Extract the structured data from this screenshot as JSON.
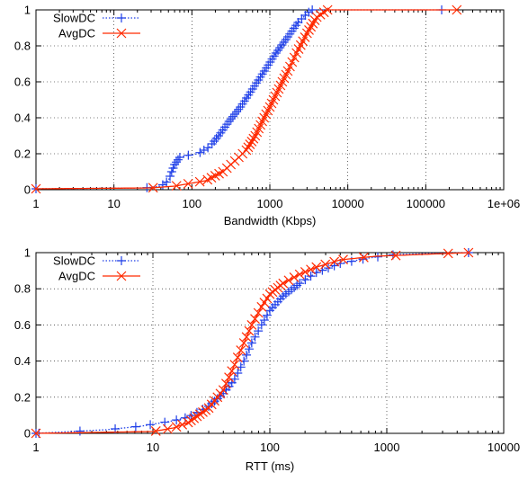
{
  "chart_data": [
    {
      "type": "line",
      "xlabel": "Bandwidth (Kbps)",
      "ylabel": "",
      "xscale": "log",
      "xlim": [
        1,
        1000000
      ],
      "ylim": [
        0,
        1
      ],
      "grid": true,
      "legend_position": "top-left",
      "x_ticks": [
        {
          "v": 1,
          "label": "1"
        },
        {
          "v": 10,
          "label": "10"
        },
        {
          "v": 100,
          "label": "100"
        },
        {
          "v": 1000,
          "label": "1000"
        },
        {
          "v": 10000,
          "label": "10000"
        },
        {
          "v": 100000,
          "label": "100000"
        },
        {
          "v": 1000000,
          "label": "1e+06"
        }
      ],
      "y_ticks": [
        {
          "v": 0,
          "label": "0"
        },
        {
          "v": 0.2,
          "label": "0.2"
        },
        {
          "v": 0.4,
          "label": "0.4"
        },
        {
          "v": 0.6,
          "label": "0.6"
        },
        {
          "v": 0.8,
          "label": "0.8"
        },
        {
          "v": 1,
          "label": "1"
        }
      ],
      "series": [
        {
          "name": "SlowDC",
          "color": "#2040e8",
          "marker": "plus",
          "line_style": "dotted",
          "points": [
            [
              1,
              0.005
            ],
            [
              25,
              0.01
            ],
            [
              40,
              0.02
            ],
            [
              50,
              0.05
            ],
            [
              55,
              0.1
            ],
            [
              60,
              0.14
            ],
            [
              70,
              0.18
            ],
            [
              85,
              0.19
            ],
            [
              120,
              0.2
            ],
            [
              170,
              0.24
            ],
            [
              220,
              0.3
            ],
            [
              300,
              0.38
            ],
            [
              420,
              0.46
            ],
            [
              600,
              0.56
            ],
            [
              850,
              0.66
            ],
            [
              1200,
              0.76
            ],
            [
              1700,
              0.85
            ],
            [
              2300,
              0.93
            ],
            [
              3000,
              0.98
            ],
            [
              3500,
              1.0
            ],
            [
              160000,
              1.0
            ]
          ]
        },
        {
          "name": "AvgDC",
          "color": "#ff2a00",
          "marker": "x",
          "line_style": "solid",
          "points": [
            [
              1,
              0.005
            ],
            [
              30,
              0.01
            ],
            [
              60,
              0.02
            ],
            [
              150,
              0.05
            ],
            [
              250,
              0.1
            ],
            [
              400,
              0.18
            ],
            [
              500,
              0.22
            ],
            [
              650,
              0.3
            ],
            [
              800,
              0.38
            ],
            [
              1000,
              0.46
            ],
            [
              1300,
              0.56
            ],
            [
              1700,
              0.66
            ],
            [
              2200,
              0.76
            ],
            [
              3000,
              0.87
            ],
            [
              4000,
              0.96
            ],
            [
              5500,
              1.0
            ],
            [
              250000,
              1.0
            ]
          ]
        }
      ]
    },
    {
      "type": "line",
      "xlabel": "RTT (ms)",
      "ylabel": "",
      "xscale": "log",
      "xlim": [
        1,
        10000
      ],
      "ylim": [
        0,
        1
      ],
      "grid": true,
      "legend_position": "top-left",
      "x_ticks": [
        {
          "v": 1,
          "label": "1"
        },
        {
          "v": 10,
          "label": "10"
        },
        {
          "v": 100,
          "label": "100"
        },
        {
          "v": 1000,
          "label": "1000"
        },
        {
          "v": 10000,
          "label": "10000"
        }
      ],
      "y_ticks": [
        {
          "v": 0,
          "label": "0"
        },
        {
          "v": 0.2,
          "label": "0.2"
        },
        {
          "v": 0.4,
          "label": "0.4"
        },
        {
          "v": 0.6,
          "label": "0.6"
        },
        {
          "v": 0.8,
          "label": "0.8"
        },
        {
          "v": 1,
          "label": "1"
        }
      ],
      "series": [
        {
          "name": "SlowDC",
          "color": "#2040e8",
          "marker": "plus",
          "line_style": "dotted",
          "points": [
            [
              1,
              0.0
            ],
            [
              4,
              0.02
            ],
            [
              8,
              0.04
            ],
            [
              15,
              0.07
            ],
            [
              20,
              0.09
            ],
            [
              30,
              0.15
            ],
            [
              40,
              0.22
            ],
            [
              50,
              0.3
            ],
            [
              60,
              0.4
            ],
            [
              70,
              0.5
            ],
            [
              85,
              0.6
            ],
            [
              100,
              0.68
            ],
            [
              130,
              0.76
            ],
            [
              180,
              0.83
            ],
            [
              250,
              0.89
            ],
            [
              400,
              0.94
            ],
            [
              700,
              0.97
            ],
            [
              1200,
              0.99
            ],
            [
              5000,
              1.0
            ]
          ]
        },
        {
          "name": "AvgDC",
          "color": "#ff2a00",
          "marker": "x",
          "line_style": "solid",
          "points": [
            [
              1,
              0.0
            ],
            [
              10,
              0.01
            ],
            [
              15,
              0.03
            ],
            [
              20,
              0.06
            ],
            [
              30,
              0.14
            ],
            [
              40,
              0.24
            ],
            [
              50,
              0.38
            ],
            [
              60,
              0.5
            ],
            [
              70,
              0.6
            ],
            [
              85,
              0.7
            ],
            [
              100,
              0.77
            ],
            [
              130,
              0.83
            ],
            [
              180,
              0.88
            ],
            [
              250,
              0.92
            ],
            [
              400,
              0.96
            ],
            [
              800,
              0.98
            ],
            [
              5000,
              1.0
            ]
          ]
        }
      ]
    }
  ]
}
